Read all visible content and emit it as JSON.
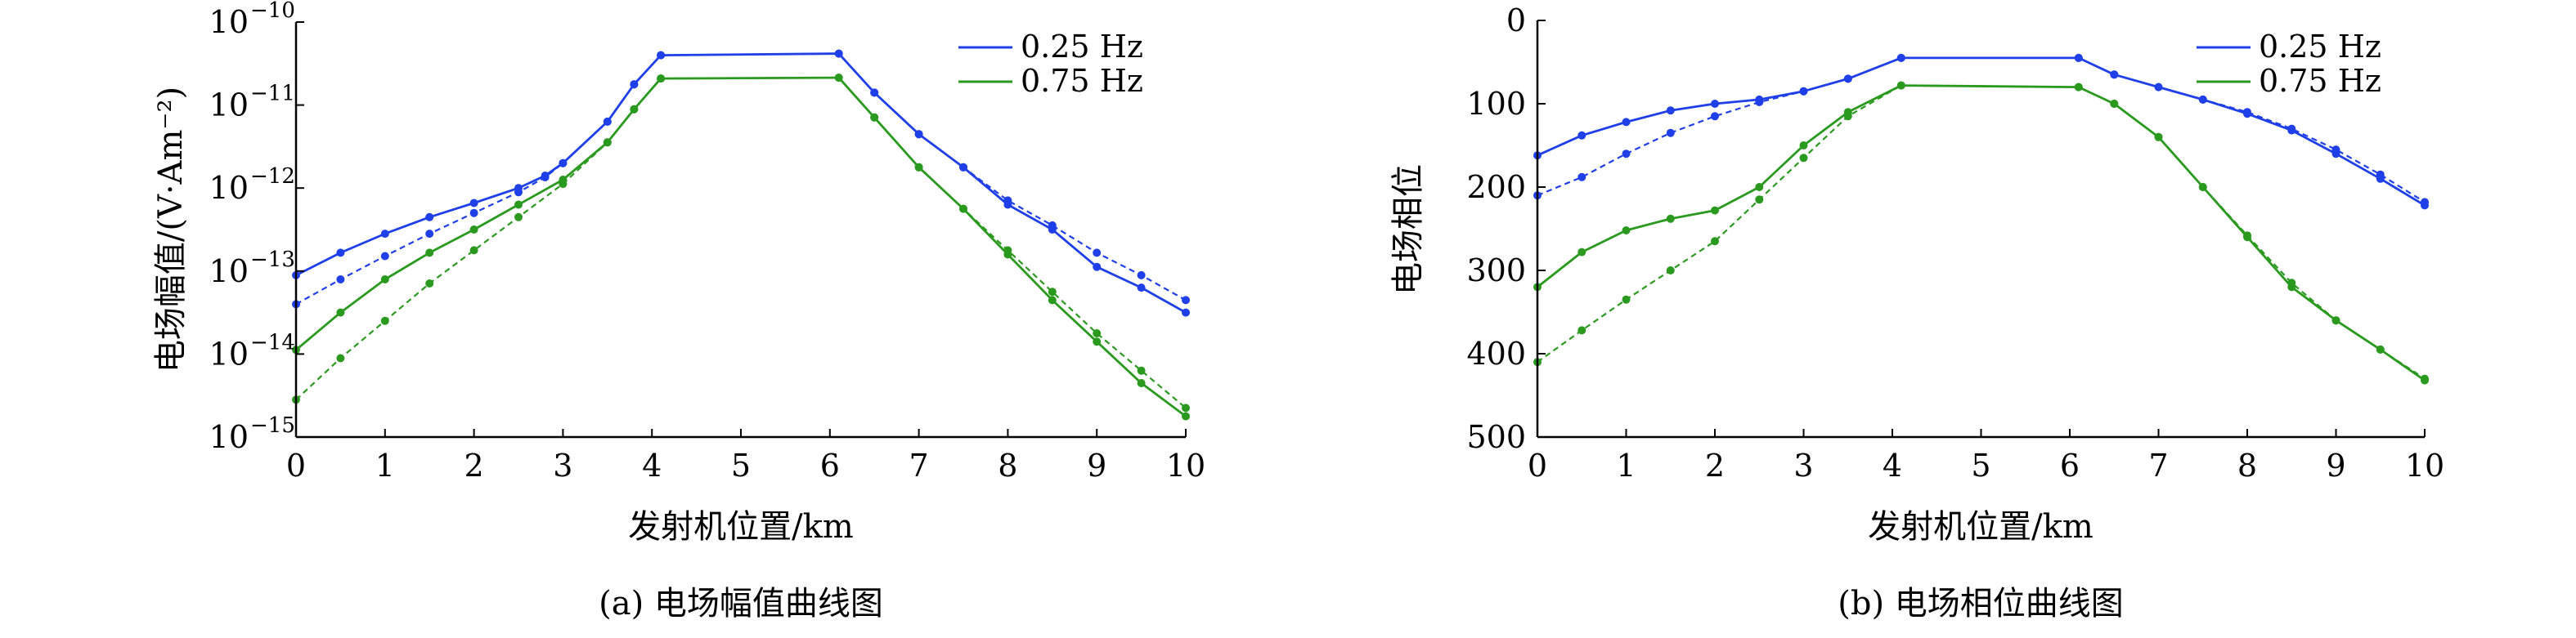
{
  "colors": {
    "blue": "#1f3fe8",
    "green": "#2a9a1f",
    "axis": "#000000"
  },
  "chart_data": [
    {
      "type": "line",
      "caption": "(a) 电场幅值曲线图",
      "xlabel": "发射机位置/km",
      "ylabel": "电场幅值/(V·Am⁻²)",
      "yscale": "log",
      "xlim": [
        0,
        10
      ],
      "ylim_exponent": [
        -15,
        -10
      ],
      "xticks": [
        "0",
        "1",
        "2",
        "3",
        "4",
        "5",
        "6",
        "7",
        "8",
        "9",
        "10"
      ],
      "yticks": [
        {
          "base": "10",
          "exp": "−15"
        },
        {
          "base": "10",
          "exp": "−14"
        },
        {
          "base": "10",
          "exp": "−13"
        },
        {
          "base": "10",
          "exp": "−12"
        },
        {
          "base": "10",
          "exp": "−11"
        },
        {
          "base": "10",
          "exp": "−10"
        }
      ],
      "legend_position": "top-right",
      "legend": [
        "0.25 Hz",
        "0.75 Hz"
      ],
      "series": [
        {
          "name": "0.25 Hz",
          "color": "blue",
          "style": "solid",
          "x": [
            0,
            0.5,
            1,
            1.5,
            2,
            2.5,
            2.8,
            3,
            3.5,
            3.8,
            4.1,
            6.1,
            6.5,
            7,
            7.5,
            8,
            8.5,
            9,
            9.5,
            10
          ],
          "log10y": [
            -13.05,
            -12.78,
            -12.55,
            -12.35,
            -12.18,
            -12.0,
            -11.85,
            -11.7,
            -11.2,
            -10.75,
            -10.4,
            -10.38,
            -10.85,
            -11.35,
            -11.75,
            -12.2,
            -12.5,
            -12.95,
            -13.2,
            -13.5
          ]
        },
        {
          "name": "",
          "color": "blue",
          "style": "dashed",
          "x": [
            0,
            0.5,
            1,
            1.5,
            2,
            2.5,
            2.8,
            3,
            3.5,
            3.8,
            4.1,
            6.1,
            6.5,
            7,
            7.5,
            8,
            8.5,
            9,
            9.5,
            10
          ],
          "log10y": [
            -13.4,
            -13.1,
            -12.82,
            -12.55,
            -12.3,
            -12.05,
            -11.87,
            -11.7,
            -11.2,
            -10.75,
            -10.4,
            -10.38,
            -10.85,
            -11.35,
            -11.75,
            -12.15,
            -12.45,
            -12.78,
            -13.05,
            -13.35
          ]
        },
        {
          "name": "0.75 Hz",
          "color": "green",
          "style": "solid",
          "x": [
            0,
            0.5,
            1,
            1.5,
            2,
            2.5,
            3,
            3.5,
            3.8,
            4.1,
            6.1,
            6.5,
            7,
            7.5,
            8,
            8.5,
            9,
            9.5,
            10
          ],
          "log10y": [
            -13.95,
            -13.5,
            -13.1,
            -12.78,
            -12.5,
            -12.2,
            -11.9,
            -11.45,
            -11.05,
            -10.68,
            -10.67,
            -11.15,
            -11.75,
            -12.25,
            -12.8,
            -13.35,
            -13.85,
            -14.35,
            -14.75
          ]
        },
        {
          "name": "",
          "color": "green",
          "style": "dashed",
          "x": [
            0,
            0.5,
            1,
            1.5,
            2,
            2.5,
            3,
            3.5,
            3.8,
            4.1,
            6.1,
            6.5,
            7,
            7.5,
            8,
            8.5,
            9,
            9.5,
            10
          ],
          "log10y": [
            -14.55,
            -14.05,
            -13.6,
            -13.15,
            -12.75,
            -12.35,
            -11.95,
            -11.45,
            -11.05,
            -10.68,
            -10.67,
            -11.15,
            -11.75,
            -12.25,
            -12.75,
            -13.25,
            -13.75,
            -14.2,
            -14.65
          ]
        }
      ]
    },
    {
      "type": "line",
      "caption": "(b) 电场相位曲线图",
      "xlabel": "发射机位置/km",
      "ylabel": "电场相位",
      "yaxis_inverted": true,
      "xlim": [
        0,
        10
      ],
      "ylim": [
        0,
        500
      ],
      "xticks": [
        "0",
        "1",
        "2",
        "3",
        "4",
        "5",
        "6",
        "7",
        "8",
        "9",
        "10"
      ],
      "yticks": [
        "0",
        "100",
        "200",
        "300",
        "400",
        "500"
      ],
      "legend_position": "top-right",
      "legend": [
        "0.25 Hz",
        "0.75 Hz"
      ],
      "series": [
        {
          "name": "0.25 Hz",
          "color": "blue",
          "style": "solid",
          "x": [
            0,
            0.5,
            1,
            1.5,
            2,
            2.5,
            3,
            3.5,
            4.1,
            6.1,
            6.5,
            7,
            7.5,
            8,
            8.5,
            9,
            9.5,
            10
          ],
          "y": [
            162,
            138,
            122,
            108,
            100,
            95,
            85,
            70,
            45,
            45,
            65,
            80,
            95,
            112,
            132,
            160,
            190,
            222
          ]
        },
        {
          "name": "",
          "color": "blue",
          "style": "dashed",
          "x": [
            0,
            0.5,
            1,
            1.5,
            2,
            2.5,
            3,
            3.5,
            4.1,
            6.1,
            6.5,
            7,
            7.5,
            8,
            8.5,
            9,
            9.5,
            10
          ],
          "y": [
            210,
            188,
            160,
            135,
            115,
            98,
            85,
            70,
            45,
            45,
            65,
            80,
            95,
            110,
            130,
            155,
            185,
            218
          ]
        },
        {
          "name": "0.75 Hz",
          "color": "green",
          "style": "solid",
          "x": [
            0,
            0.5,
            1,
            1.5,
            2,
            2.5,
            3,
            3.5,
            4.1,
            6.1,
            6.5,
            7,
            7.5,
            8,
            8.5,
            9,
            9.5,
            10
          ],
          "y": [
            320,
            278,
            252,
            238,
            228,
            200,
            150,
            110,
            78,
            80,
            100,
            140,
            200,
            260,
            320,
            360,
            395,
            432
          ]
        },
        {
          "name": "",
          "color": "green",
          "style": "dashed",
          "x": [
            0,
            0.5,
            1,
            1.5,
            2,
            2.5,
            3,
            3.5,
            4.1,
            6.1,
            6.5,
            7,
            7.5,
            8,
            8.5,
            9,
            9.5,
            10
          ],
          "y": [
            410,
            372,
            335,
            300,
            265,
            215,
            165,
            115,
            78,
            80,
            100,
            140,
            200,
            258,
            315,
            360,
            395,
            430
          ]
        }
      ]
    }
  ]
}
